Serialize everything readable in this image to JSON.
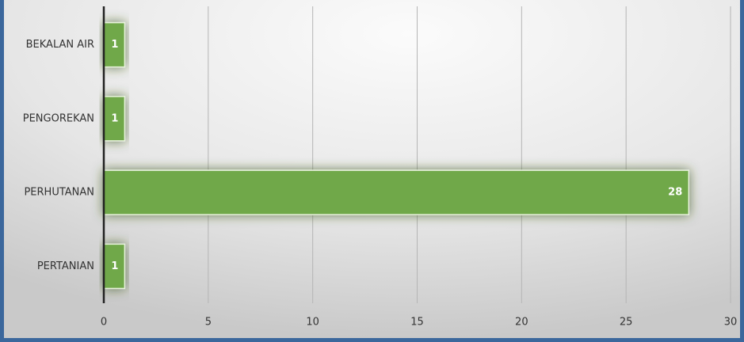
{
  "chart_data": {
    "type": "bar",
    "orientation": "horizontal",
    "categories": [
      "BEKALAN AIR",
      "PENGOREKAN",
      "PERHUTANAN",
      "PERTANIAN"
    ],
    "values": [
      1,
      1,
      28,
      1
    ],
    "color": "#70a84a",
    "xlim": [
      0,
      30
    ],
    "xticks": [
      0,
      5,
      10,
      15,
      20,
      25,
      30
    ],
    "grid": true
  }
}
